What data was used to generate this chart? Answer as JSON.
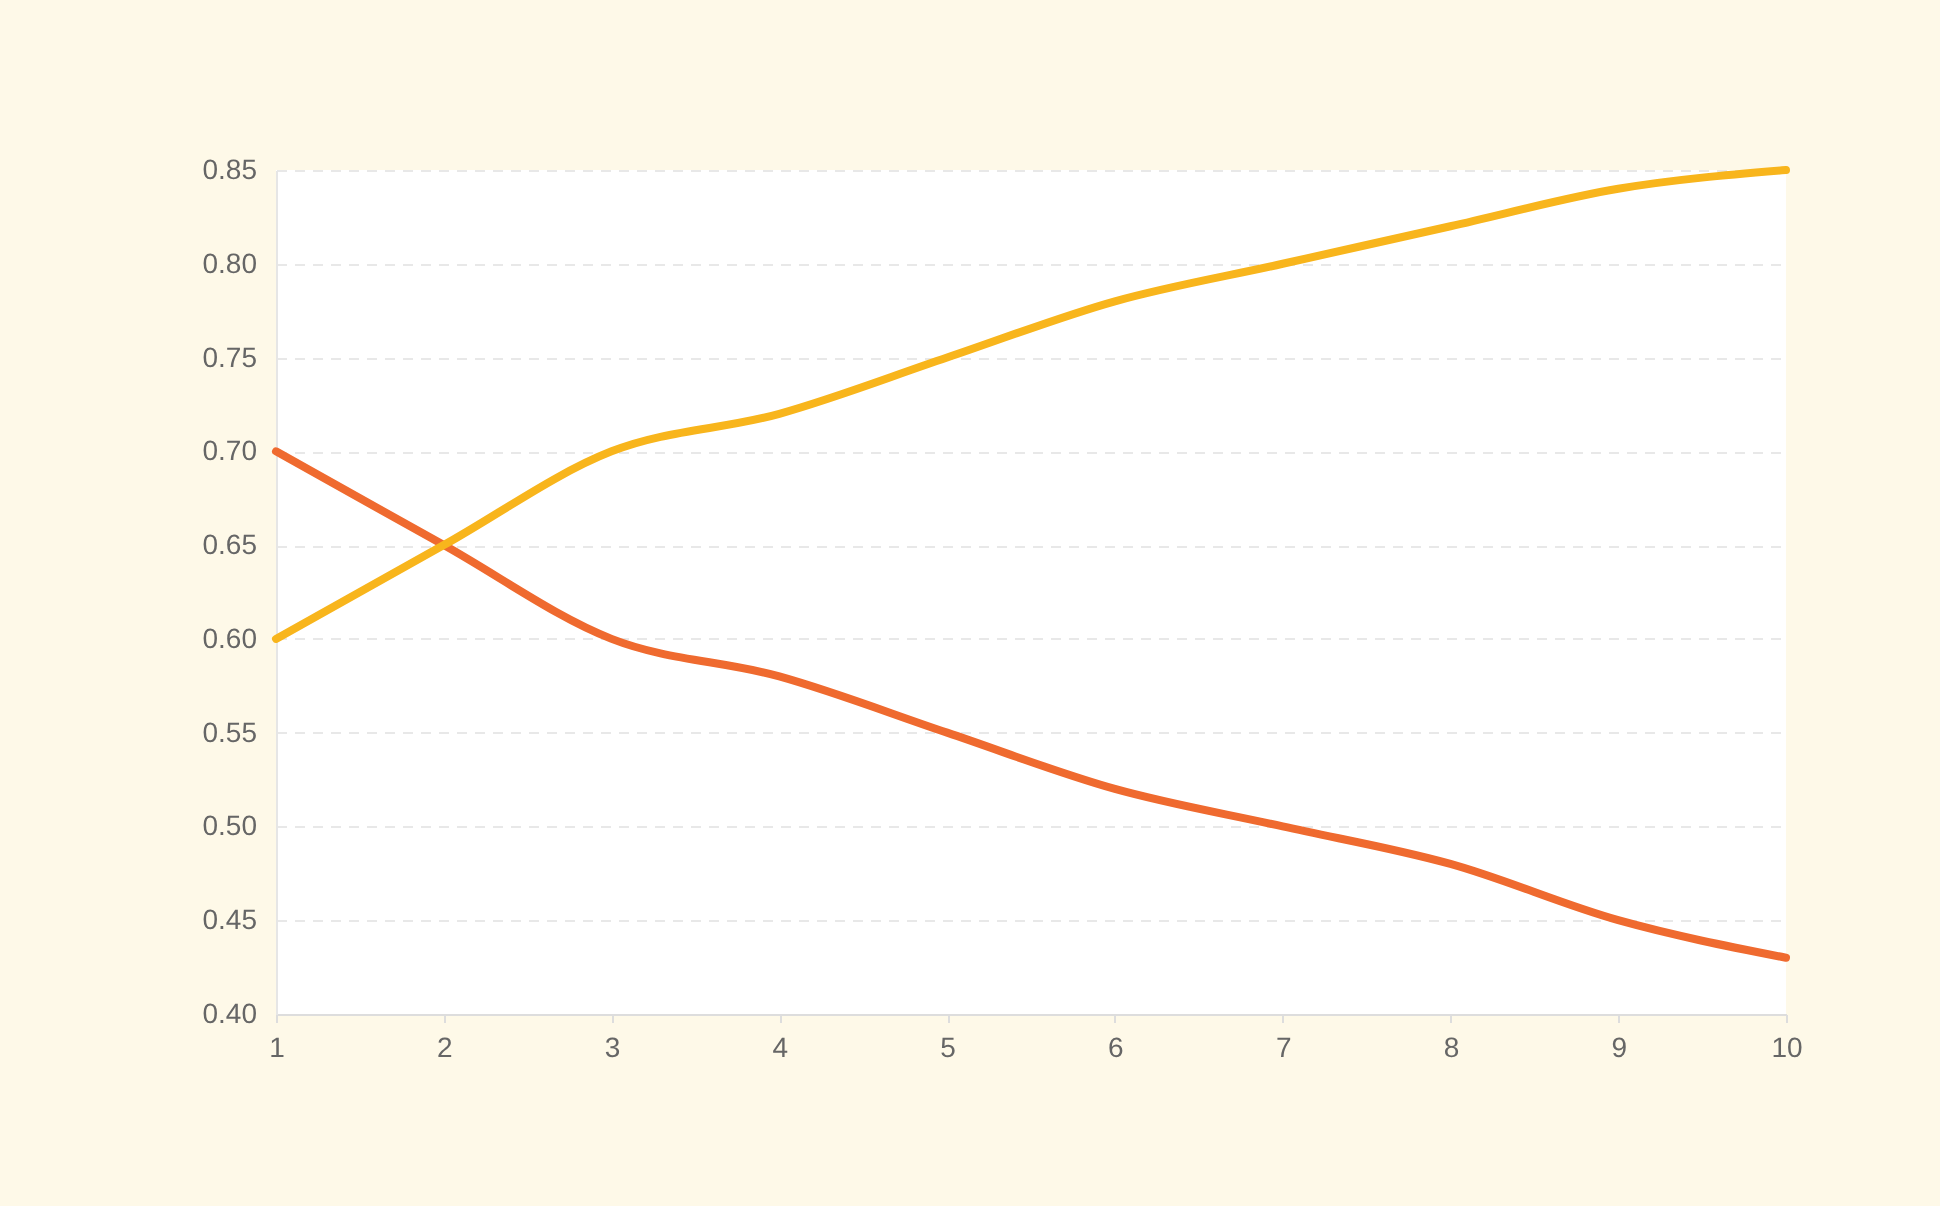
{
  "chart_data": {
    "type": "line",
    "x": [
      1,
      2,
      3,
      4,
      5,
      6,
      7,
      8,
      9,
      10
    ],
    "series": [
      {
        "color": "#ef6a2f",
        "values": [
          0.7,
          0.65,
          0.6,
          0.58,
          0.55,
          0.52,
          0.5,
          0.48,
          0.45,
          0.43
        ]
      },
      {
        "color": "#f8b51c",
        "values": [
          0.6,
          0.65,
          0.7,
          0.72,
          0.75,
          0.78,
          0.8,
          0.82,
          0.84,
          0.85
        ]
      }
    ],
    "xlim": [
      1,
      10
    ],
    "xticks": [
      1,
      2,
      3,
      4,
      5,
      6,
      7,
      8,
      9,
      10
    ],
    "ylim": [
      0.4,
      0.85
    ],
    "yticks": [
      {
        "value": 0.4,
        "label": "0.40"
      },
      0.45,
      {
        "value": 0.5,
        "label": "0.50"
      },
      0.55,
      {
        "value": 0.6,
        "label": "0.60"
      },
      0.65,
      {
        "value": 0.7,
        "label": "0.70"
      },
      0.75,
      {
        "value": 0.8,
        "label": "0.80"
      },
      0.85
    ],
    "grid": "y",
    "line_style": "solid"
  }
}
